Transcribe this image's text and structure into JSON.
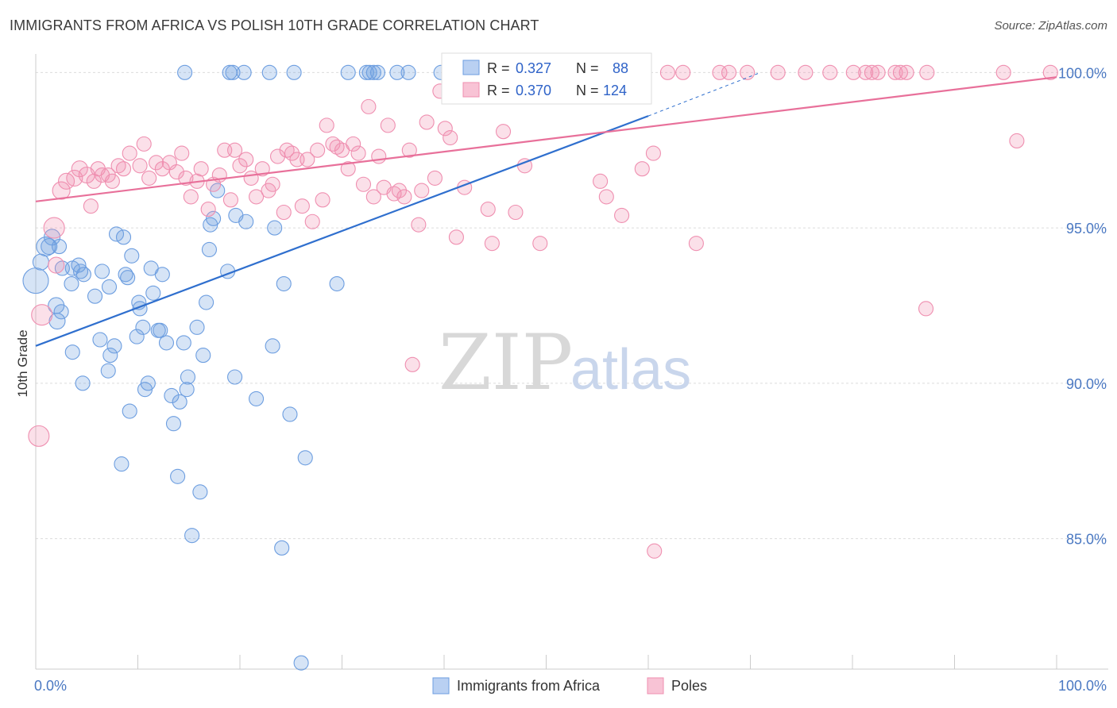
{
  "title": "IMMIGRANTS FROM AFRICA VS POLISH 10TH GRADE CORRELATION CHART",
  "source": "Source: ZipAtlas.com",
  "watermark": {
    "zip": "ZIP",
    "atlas": "atlas"
  },
  "colors": {
    "blue": "#6d9ee0",
    "pink": "#ef8fb0",
    "blue_line": "#2f6fce",
    "pink_line": "#e8709a",
    "tick_blue": "#4a78c2"
  },
  "legend": {
    "r_label": "R =",
    "n_label": "N =",
    "blue": {
      "r": "0.327",
      "n": "88"
    },
    "pink": {
      "r": "0.370",
      "n": "124"
    }
  },
  "chart_data": {
    "type": "scatter",
    "title": "IMMIGRANTS FROM AFRICA VS POLISH 10TH GRADE CORRELATION CHART",
    "xlabel": "",
    "ylabel": "10th Grade",
    "xlim": [
      0,
      100
    ],
    "ylim": [
      80.8,
      100.8
    ],
    "x_tick_labels": [
      "0.0%",
      "100.0%"
    ],
    "y_ticks": [
      85,
      90,
      95,
      100
    ],
    "y_tick_labels": [
      "85.0%",
      "90.0%",
      "95.0%",
      "100.0%"
    ],
    "grid": true,
    "legend_position": "top-center",
    "series": [
      {
        "name": "Immigrants from Africa",
        "color": "#6d9ee0",
        "r": 0.327,
        "n": 88,
        "trendline": {
          "x": [
            0,
            60,
            71
          ],
          "y": [
            91.2,
            98.6,
            100.0
          ]
        },
        "points": [
          [
            0,
            93.3,
            16
          ],
          [
            0.5,
            93.9,
            10
          ],
          [
            1,
            94.4,
            12
          ],
          [
            1.3,
            94.4,
            10
          ],
          [
            1.6,
            94.7,
            10
          ],
          [
            2.3,
            94.4,
            9
          ],
          [
            2,
            92.5,
            10
          ],
          [
            2.1,
            92.0,
            10
          ],
          [
            2.5,
            92.3,
            9
          ],
          [
            2.6,
            93.7,
            9
          ],
          [
            3.5,
            93.2,
            9
          ],
          [
            3.6,
            93.7,
            9
          ],
          [
            4.2,
            93.8,
            9
          ],
          [
            4.4,
            93.6,
            9
          ],
          [
            3.6,
            91.0,
            9
          ],
          [
            4.7,
            93.5,
            9
          ],
          [
            4.6,
            90.0,
            9
          ],
          [
            5.8,
            92.8,
            9
          ],
          [
            6.3,
            91.4,
            9
          ],
          [
            6.5,
            93.6,
            9
          ],
          [
            7.1,
            90.4,
            9
          ],
          [
            7.2,
            93.1,
            9
          ],
          [
            7.3,
            90.9,
            9
          ],
          [
            7.7,
            91.2,
            9
          ],
          [
            7.9,
            94.8,
            9
          ],
          [
            8.6,
            94.7,
            9
          ],
          [
            8.8,
            93.5,
            9
          ],
          [
            8.4,
            87.4,
            9
          ],
          [
            9.0,
            93.4,
            9
          ],
          [
            9.2,
            89.1,
            9
          ],
          [
            9.4,
            94.1,
            9
          ],
          [
            9.9,
            91.5,
            9
          ],
          [
            10.1,
            92.6,
            9
          ],
          [
            10.2,
            92.4,
            9
          ],
          [
            10.5,
            91.8,
            9
          ],
          [
            10.7,
            89.8,
            9
          ],
          [
            11,
            90.0,
            9
          ],
          [
            11.3,
            93.7,
            9
          ],
          [
            11.5,
            92.9,
            9
          ],
          [
            12,
            91.7,
            9
          ],
          [
            12.2,
            91.7,
            9
          ],
          [
            12.4,
            93.5,
            9
          ],
          [
            12.8,
            91.3,
            9
          ],
          [
            13.3,
            89.6,
            9
          ],
          [
            13.5,
            88.7,
            9
          ],
          [
            13.9,
            87.0,
            9
          ],
          [
            14.1,
            89.4,
            9
          ],
          [
            14.5,
            91.3,
            9
          ],
          [
            14.9,
            90.2,
            9
          ],
          [
            14.8,
            89.8,
            9
          ],
          [
            15.3,
            85.1,
            9
          ],
          [
            15.8,
            91.8,
            9
          ],
          [
            16.1,
            86.5,
            9
          ],
          [
            16.4,
            90.9,
            9
          ],
          [
            16.7,
            92.6,
            9
          ],
          [
            17,
            94.3,
            9
          ],
          [
            17.1,
            95.1,
            9
          ],
          [
            17.4,
            95.3,
            9
          ],
          [
            17.8,
            96.2,
            9
          ],
          [
            18.8,
            93.6,
            9
          ],
          [
            19.6,
            95.4,
            9
          ],
          [
            19.5,
            90.2,
            9
          ],
          [
            20.6,
            95.2,
            9
          ],
          [
            21.6,
            89.5,
            9
          ],
          [
            23.2,
            91.2,
            9
          ],
          [
            23.4,
            95.0,
            9
          ],
          [
            24.1,
            84.7,
            9
          ],
          [
            24.3,
            93.2,
            9
          ],
          [
            24.9,
            89.0,
            9
          ],
          [
            26,
            81.0,
            9
          ],
          [
            26.4,
            87.6,
            9
          ],
          [
            29.5,
            93.2,
            9
          ],
          [
            14.6,
            100.0,
            9
          ],
          [
            19,
            100.0,
            9
          ],
          [
            19.3,
            100.0,
            9
          ],
          [
            20.4,
            100.0,
            9
          ],
          [
            22.9,
            100.0,
            9
          ],
          [
            25.3,
            100.0,
            9
          ],
          [
            30.6,
            100.0,
            9
          ],
          [
            32.4,
            100.0,
            9
          ],
          [
            32.7,
            100.0,
            9
          ],
          [
            33.1,
            100.0,
            9
          ],
          [
            35.4,
            100.0,
            9
          ],
          [
            39.7,
            100.0,
            9
          ],
          [
            36.5,
            100.0,
            9
          ],
          [
            43.3,
            100.0,
            9
          ],
          [
            46.8,
            100.0,
            9
          ],
          [
            33.5,
            100.0,
            9
          ]
        ]
      },
      {
        "name": "Poles",
        "color": "#ef8fb0",
        "r": 0.37,
        "n": 124,
        "trendline": {
          "x": [
            0,
            100
          ],
          "y": [
            95.85,
            99.85
          ]
        },
        "points": [
          [
            0.3,
            88.3,
            13
          ],
          [
            0.6,
            92.2,
            13
          ],
          [
            1.8,
            95.0,
            13
          ],
          [
            2,
            93.8,
            10
          ],
          [
            2.5,
            96.2,
            11
          ],
          [
            3,
            96.5,
            10
          ],
          [
            3.8,
            96.6,
            10
          ],
          [
            4.3,
            96.9,
            10
          ],
          [
            5,
            96.7,
            10
          ],
          [
            5.4,
            95.7,
            9
          ],
          [
            5.7,
            96.5,
            9
          ],
          [
            6.1,
            96.9,
            9
          ],
          [
            6.5,
            96.7,
            9
          ],
          [
            7.1,
            96.7,
            9
          ],
          [
            7.5,
            96.5,
            9
          ],
          [
            8.1,
            97.0,
            9
          ],
          [
            8.6,
            96.9,
            9
          ],
          [
            9.2,
            97.4,
            9
          ],
          [
            10.2,
            97.0,
            9
          ],
          [
            10.6,
            97.7,
            9
          ],
          [
            11.1,
            96.6,
            9
          ],
          [
            11.8,
            97.1,
            9
          ],
          [
            12.4,
            96.9,
            9
          ],
          [
            13.1,
            97.1,
            9
          ],
          [
            13.8,
            96.8,
            9
          ],
          [
            14.3,
            97.4,
            9
          ],
          [
            14.7,
            96.6,
            9
          ],
          [
            15.2,
            96.0,
            9
          ],
          [
            15.8,
            96.5,
            9
          ],
          [
            16.2,
            96.9,
            9
          ],
          [
            16.9,
            95.6,
            9
          ],
          [
            17.4,
            96.4,
            9
          ],
          [
            18,
            96.7,
            9
          ],
          [
            18.5,
            97.5,
            9
          ],
          [
            19.1,
            95.9,
            9
          ],
          [
            19.5,
            97.5,
            9
          ],
          [
            20,
            97.0,
            9
          ],
          [
            20.6,
            97.2,
            9
          ],
          [
            21.1,
            96.6,
            9
          ],
          [
            21.6,
            96.0,
            9
          ],
          [
            22.2,
            96.9,
            9
          ],
          [
            22.8,
            96.2,
            9
          ],
          [
            23.2,
            96.4,
            9
          ],
          [
            23.7,
            97.3,
            9
          ],
          [
            24.3,
            95.5,
            9
          ],
          [
            24.6,
            97.5,
            9
          ],
          [
            25.1,
            97.4,
            9
          ],
          [
            25.6,
            97.2,
            9
          ],
          [
            26.1,
            95.7,
            9
          ],
          [
            26.6,
            97.2,
            9
          ],
          [
            27.1,
            95.2,
            9
          ],
          [
            27.6,
            97.5,
            9
          ],
          [
            28.1,
            95.9,
            9
          ],
          [
            28.5,
            98.3,
            9
          ],
          [
            29.1,
            97.7,
            9
          ],
          [
            29.5,
            97.6,
            9
          ],
          [
            30,
            97.5,
            9
          ],
          [
            30.6,
            96.9,
            9
          ],
          [
            31.1,
            97.7,
            9
          ],
          [
            31.6,
            97.4,
            9
          ],
          [
            32.1,
            96.4,
            9
          ],
          [
            32.6,
            98.9,
            9
          ],
          [
            33.1,
            96.0,
            9
          ],
          [
            33.6,
            97.3,
            9
          ],
          [
            34.1,
            96.3,
            9
          ],
          [
            34.5,
            98.3,
            9
          ],
          [
            35.1,
            96.1,
            9
          ],
          [
            35.6,
            96.2,
            9
          ],
          [
            36.1,
            96.0,
            9
          ],
          [
            36.6,
            97.5,
            9
          ],
          [
            36.9,
            90.6,
            9
          ],
          [
            37.5,
            95.1,
            9
          ],
          [
            37.8,
            96.2,
            9
          ],
          [
            38.3,
            98.4,
            9
          ],
          [
            39.1,
            96.6,
            9
          ],
          [
            39.6,
            99.4,
            9
          ],
          [
            40.1,
            98.2,
            9
          ],
          [
            40.6,
            97.9,
            9
          ],
          [
            41.2,
            94.7,
            9
          ],
          [
            42,
            96.3,
            9
          ],
          [
            43.2,
            99.6,
            9
          ],
          [
            44.3,
            95.6,
            9
          ],
          [
            44.7,
            94.5,
            9
          ],
          [
            45.8,
            98.1,
            9
          ],
          [
            47,
            95.5,
            9
          ],
          [
            47.9,
            97.0,
            9
          ],
          [
            47.1,
            99.6,
            9
          ],
          [
            47.6,
            100.0,
            9
          ],
          [
            49.4,
            94.5,
            9
          ],
          [
            50.9,
            99.8,
            9
          ],
          [
            51.9,
            100.0,
            9
          ],
          [
            53.1,
            100.0,
            9
          ],
          [
            55.3,
            96.5,
            9
          ],
          [
            55.9,
            96.0,
            9
          ],
          [
            56.4,
            100.0,
            9
          ],
          [
            57.4,
            95.4,
            9
          ],
          [
            58.1,
            100.0,
            9
          ],
          [
            59.4,
            96.9,
            9
          ],
          [
            60.5,
            97.4,
            9
          ],
          [
            61.9,
            100.0,
            9
          ],
          [
            63.4,
            100.0,
            9
          ],
          [
            64.7,
            94.5,
            9
          ],
          [
            67,
            100.0,
            9
          ],
          [
            67.9,
            100.0,
            9
          ],
          [
            69.7,
            100.0,
            9
          ],
          [
            72.7,
            100.0,
            9
          ],
          [
            75.4,
            100.0,
            9
          ],
          [
            77.8,
            100.0,
            9
          ],
          [
            80.1,
            100.0,
            9
          ],
          [
            81.3,
            100.0,
            9
          ],
          [
            81.9,
            100.0,
            9
          ],
          [
            82.5,
            100.0,
            9
          ],
          [
            84.2,
            100.0,
            9
          ],
          [
            84.7,
            100.0,
            9
          ],
          [
            85.3,
            100.0,
            9
          ],
          [
            87.3,
            100.0,
            9
          ],
          [
            87.2,
            92.4,
            9
          ],
          [
            94.8,
            100.0,
            9
          ],
          [
            96.1,
            97.8,
            9
          ],
          [
            99.4,
            100.0,
            9
          ],
          [
            60.6,
            84.6,
            9
          ],
          [
            43.3,
            100.0,
            9
          ],
          [
            44.1,
            100.0,
            9
          ],
          [
            46.2,
            100.0,
            9
          ],
          [
            45.1,
            100.0,
            9
          ],
          [
            49.5,
            100.0,
            9
          ]
        ]
      }
    ]
  }
}
